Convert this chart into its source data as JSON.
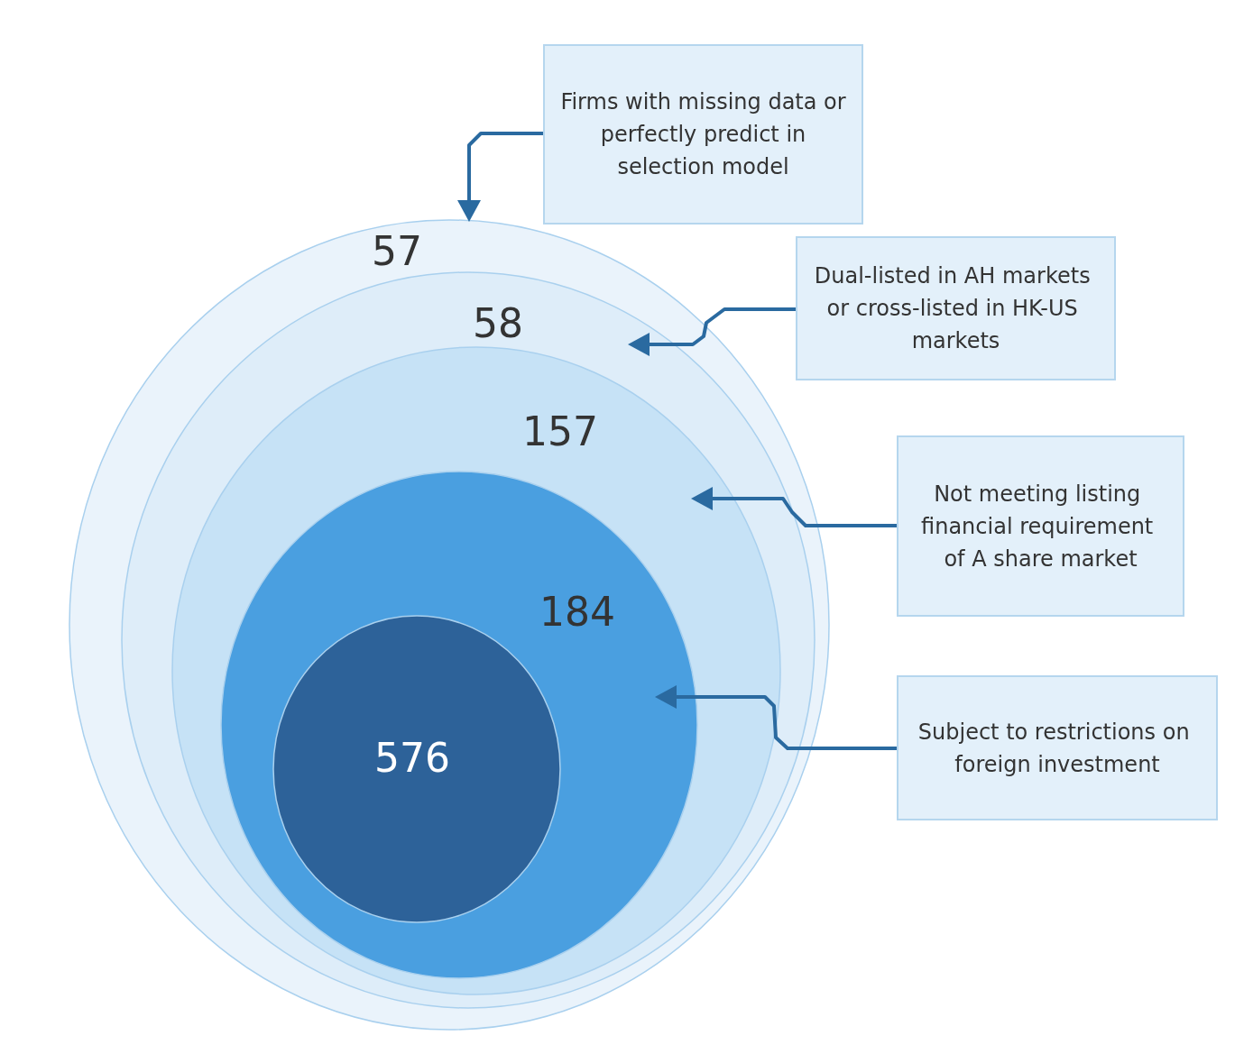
{
  "chart_data": {
    "type": "other",
    "categories": [
      null,
      null,
      null,
      null,
      null
    ],
    "values": [
      57,
      58,
      157,
      184,
      576
    ],
    "colors": [
      "#eaf3fb",
      "#deedf9",
      "#c6e2f6",
      "#4a9fe0",
      "#2d6299"
    ],
    "data_labels": true,
    "annotations": [
      "Firms with missing data or perfectly predict in selection model",
      "Dual-listed in AH markets or cross-listed in HK-US markets",
      "Not meeting listing financial requirement of A share market",
      "Subject to restrictions on foreign investment"
    ]
  }
}
